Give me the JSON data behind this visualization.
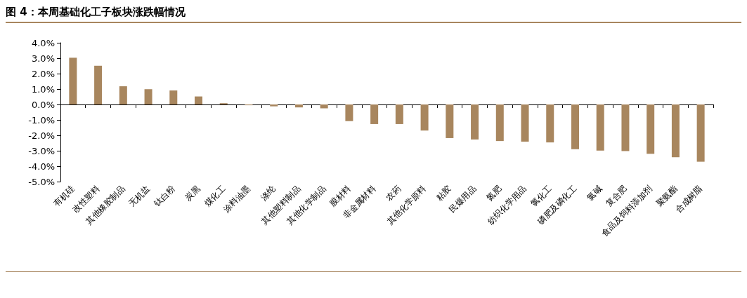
{
  "chart_data": {
    "type": "bar",
    "title": "图 4：本周基础化工子板块涨跌幅情况",
    "categories": [
      "有机硅",
      "改性塑料",
      "其他橡胶制品",
      "无机盐",
      "钛白粉",
      "炭黑",
      "煤化工",
      "涂料油墨",
      "涤纶",
      "其他塑料制品",
      "其他化学制品",
      "膜材料",
      "非金属材料",
      "农药",
      "其他化学原料",
      "粘胶",
      "民爆用品",
      "氮肥",
      "纺织化学用品",
      "氯化工",
      "磷肥及磷化工",
      "氯碱",
      "复合肥",
      "食品及饲料添加剂",
      "聚氨酯",
      "合成树脂"
    ],
    "values": [
      3.03,
      2.51,
      1.18,
      0.99,
      0.91,
      0.52,
      0.08,
      -0.05,
      -0.12,
      -0.19,
      -0.25,
      -1.08,
      -1.27,
      -1.27,
      -1.69,
      -2.18,
      -2.27,
      -2.37,
      -2.41,
      -2.46,
      -2.9,
      -2.99,
      -3.02,
      -3.2,
      -3.42,
      -3.71
    ],
    "color": "#a8865e",
    "ylim": [
      -5,
      4
    ],
    "yticks": [
      {
        "value": -5,
        "label": "-5.0%"
      },
      {
        "value": -4,
        "label": "-4.0%"
      },
      {
        "value": -3,
        "label": "-3.0%"
      },
      {
        "value": -2,
        "label": "-2.0%"
      },
      {
        "value": -1,
        "label": "-1.0%"
      },
      {
        "value": 0,
        "label": "0.0%"
      },
      {
        "value": 1,
        "label": "1.0%"
      },
      {
        "value": 2,
        "label": "2.0%"
      },
      {
        "value": 3,
        "label": "3.0%"
      },
      {
        "value": 4,
        "label": "4.0%"
      }
    ],
    "data_labels": false
  }
}
